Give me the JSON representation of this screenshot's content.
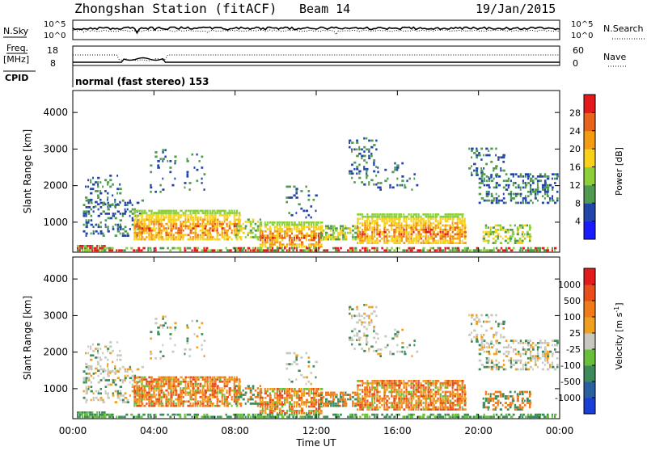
{
  "header": {
    "station": "Zhongshan Station (fitACF)",
    "beam": "Beam 14",
    "date": "19/Jan/2015"
  },
  "top_panels": {
    "nsky_label": "N.Sky",
    "nsky_ticks": [
      "10^5",
      "10^0"
    ],
    "nsearch_label": "N.Search",
    "nsearch_ticks": [
      "10^5",
      "10^0"
    ],
    "freq_label": "Freq.",
    "freq_unit": "[MHz]",
    "freq_ticks": [
      "18",
      "8"
    ],
    "nave_label": "Nave",
    "nave_ticks": [
      "60",
      "0"
    ],
    "cpid_label": "CPID",
    "cpid_text": "normal (fast stereo) 153"
  },
  "chart_data": [
    {
      "type": "heatmap",
      "name": "power-panel",
      "ylabel": "Slant Range [km]",
      "xlabel": "",
      "xlim": [
        0,
        24
      ],
      "ylim": [
        180,
        4600
      ],
      "y_ticks": [
        "4000",
        "3000",
        "2000",
        "1000"
      ],
      "y_tick_values": [
        4000,
        3000,
        2000,
        1000
      ],
      "colorbar": {
        "label": "Power [dB]",
        "ticks": [
          "28",
          "24",
          "20",
          "16",
          "12",
          "8",
          "4"
        ],
        "tick_values": [
          28,
          24,
          20,
          16,
          12,
          8,
          4
        ],
        "range": [
          0,
          32
        ],
        "colors": [
          "#1a1aff",
          "#2246a8",
          "#4f9a4f",
          "#8ccf3a",
          "#f7d11a",
          "#f39c12",
          "#e8641c",
          "#e31a1c"
        ]
      }
    },
    {
      "type": "heatmap",
      "name": "velocity-panel",
      "ylabel": "Slant Range [km]",
      "xlabel": "Time UT",
      "xlim": [
        0,
        24
      ],
      "ylim": [
        180,
        4600
      ],
      "x_ticks": [
        "00:00",
        "04:00",
        "08:00",
        "12:00",
        "16:00",
        "20:00",
        "00:00"
      ],
      "x_tick_values": [
        0,
        4,
        8,
        12,
        16,
        20,
        24
      ],
      "y_ticks": [
        "4000",
        "3000",
        "2000",
        "1000"
      ],
      "y_tick_values": [
        4000,
        3000,
        2000,
        1000
      ],
      "colorbar": {
        "label": "Velocity [m s",
        "label_sup": "-1",
        "label_close": "]",
        "ticks": [
          "1000",
          "500",
          "100",
          "25",
          "-25",
          "-100",
          "-500",
          "-1000"
        ],
        "colors": [
          "#1a3fd6",
          "#2a5fa0",
          "#3d8a5a",
          "#6abf3a",
          "#c8c8c0",
          "#f0a020",
          "#ef7b1a",
          "#e84e1a",
          "#e31a1c"
        ]
      }
    }
  ]
}
